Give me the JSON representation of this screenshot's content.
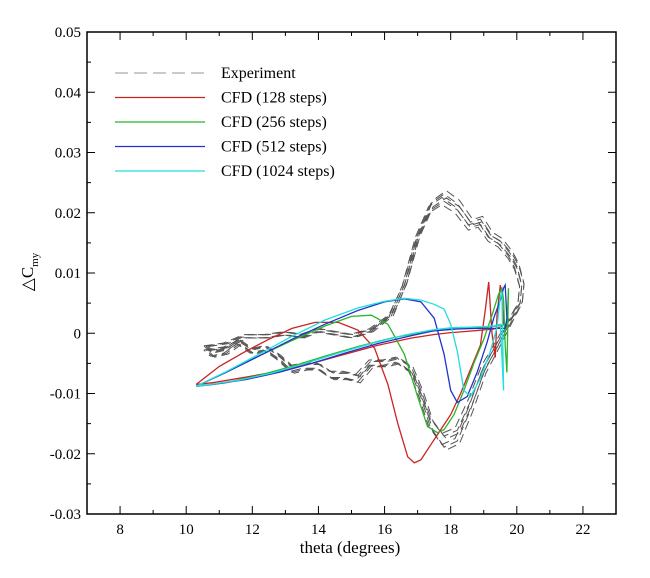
{
  "chart_data": {
    "type": "line",
    "title": "",
    "xlabel": "theta (degrees)",
    "ylabel": "△C",
    "ylabel_subscript": "my",
    "xlim": [
      7,
      23
    ],
    "ylim": [
      -0.03,
      0.05
    ],
    "x_ticks": [
      8,
      10,
      12,
      14,
      16,
      18,
      20,
      22
    ],
    "x_tick_labels": [
      "8",
      "10",
      "12",
      "14",
      "16",
      "18",
      "20",
      "22"
    ],
    "y_ticks": [
      -0.03,
      -0.02,
      -0.01,
      0,
      0.01,
      0.02,
      0.03,
      0.04,
      0.05
    ],
    "y_tick_labels": [
      "-0.03",
      "-0.02",
      "-0.01",
      "0",
      "0.01",
      "0.02",
      "0.03",
      "0.04",
      "0.05"
    ],
    "grid": false,
    "legend_position": "top-left",
    "series": [
      {
        "name": "Experiment",
        "color": "#555555",
        "style": "dashed",
        "cycles": 6,
        "x": [
          10.6,
          11.2,
          11.8,
          12.4,
          13.0,
          13.5,
          14.0,
          14.5,
          15.0,
          15.6,
          16.2,
          16.6,
          17.0,
          17.4,
          17.8,
          18.2,
          18.6,
          18.9,
          19.2,
          19.5,
          19.8,
          20.0,
          20.15,
          20.1,
          19.8,
          19.4,
          19.0,
          18.6,
          18.2,
          17.8,
          17.4,
          17.1,
          16.8,
          16.4,
          16.0,
          15.6,
          15.2,
          14.8,
          14.4,
          14.0,
          13.6,
          13.2,
          12.8,
          12.4,
          12.0,
          11.6,
          11.2,
          10.8,
          10.6
        ],
        "y": [
          -0.0025,
          -0.002,
          -0.0005,
          -0.0005,
          0.0,
          -0.0005,
          0.0005,
          0.0,
          -0.0005,
          0.0005,
          0.003,
          0.008,
          0.016,
          0.021,
          0.0225,
          0.021,
          0.018,
          0.0185,
          0.016,
          0.015,
          0.013,
          0.011,
          0.008,
          0.005,
          0.002,
          -0.002,
          -0.006,
          -0.012,
          -0.017,
          -0.018,
          -0.015,
          -0.01,
          -0.006,
          -0.0045,
          -0.005,
          -0.005,
          -0.0075,
          -0.007,
          -0.007,
          -0.0055,
          -0.0055,
          -0.006,
          -0.004,
          -0.0025,
          -0.003,
          -0.0015,
          -0.003,
          -0.0035,
          -0.0025
        ]
      },
      {
        "name": "CFD (128 steps)",
        "color": "#cc2222",
        "style": "solid",
        "x": [
          10.3,
          11.0,
          11.8,
          12.5,
          13.2,
          13.9,
          14.6,
          15.2,
          15.7,
          16.1,
          16.4,
          16.7,
          16.9,
          17.1,
          17.4,
          17.7,
          18.0,
          18.3,
          18.6,
          18.9,
          19.05,
          19.15,
          19.25,
          19.35,
          19.4,
          19.5,
          19.55,
          19.6,
          19.5,
          19.3,
          19.1,
          18.9,
          18.5,
          18.0,
          17.5,
          16.8,
          15.8,
          14.8,
          13.8,
          12.8,
          11.8,
          10.8,
          10.3
        ],
        "y": [
          -0.0085,
          -0.0055,
          -0.003,
          -0.001,
          0.0008,
          0.0018,
          0.0018,
          0.0005,
          -0.0025,
          -0.0085,
          -0.015,
          -0.0205,
          -0.0215,
          -0.021,
          -0.0185,
          -0.016,
          -0.0135,
          -0.01,
          -0.006,
          -0.002,
          0.004,
          0.0085,
          0.0,
          -0.004,
          0.003,
          0.008,
          0.006,
          0.0015,
          0.001,
          0.0007,
          0.0006,
          0.0005,
          0.0003,
          0.0001,
          -0.0002,
          -0.0008,
          -0.002,
          -0.0035,
          -0.005,
          -0.0063,
          -0.0073,
          -0.0082,
          -0.0085
        ]
      },
      {
        "name": "CFD (256 steps)",
        "color": "#2ab52a",
        "style": "solid",
        "x": [
          10.3,
          11.2,
          12.2,
          13.2,
          14.2,
          15.0,
          15.6,
          16.1,
          16.6,
          17.0,
          17.3,
          17.6,
          17.8,
          18.1,
          18.4,
          18.7,
          19.0,
          19.25,
          19.45,
          19.55,
          19.6,
          19.65,
          19.7,
          19.75,
          19.7,
          19.4,
          19.0,
          18.6,
          18.0,
          17.2,
          16.2,
          15.2,
          14.2,
          13.2,
          12.2,
          11.2,
          10.3
        ],
        "y": [
          -0.0088,
          -0.0065,
          -0.0038,
          -0.0012,
          0.0012,
          0.0028,
          0.003,
          0.0015,
          -0.0035,
          -0.0105,
          -0.0155,
          -0.0165,
          -0.016,
          -0.0135,
          -0.0095,
          -0.005,
          -0.001,
          0.003,
          0.0065,
          0.0075,
          0.0055,
          -0.002,
          -0.0065,
          0.0075,
          0.0015,
          0.0012,
          0.001,
          0.0009,
          0.0007,
          0.0002,
          -0.0008,
          -0.0022,
          -0.0038,
          -0.0055,
          -0.007,
          -0.0082,
          -0.0088
        ]
      },
      {
        "name": "CFD (512 steps)",
        "color": "#2233cc",
        "style": "solid",
        "x": [
          10.3,
          11.2,
          12.2,
          13.2,
          14.2,
          15.2,
          16.0,
          16.6,
          17.1,
          17.5,
          17.8,
          18.0,
          18.2,
          18.5,
          18.8,
          19.1,
          19.3,
          19.5,
          19.6,
          19.65,
          19.7,
          19.65,
          19.45,
          19.2,
          18.8,
          18.2,
          17.5,
          16.8,
          15.8,
          14.8,
          13.8,
          12.8,
          11.8,
          10.8,
          10.3
        ],
        "y": [
          -0.0088,
          -0.0065,
          -0.0038,
          -0.001,
          0.0015,
          0.0038,
          0.0052,
          0.0057,
          0.0052,
          0.0025,
          -0.0035,
          -0.0095,
          -0.0115,
          -0.0105,
          -0.0065,
          -0.0015,
          0.0025,
          0.0055,
          0.0075,
          0.008,
          0.0025,
          0.0008,
          0.0008,
          0.0008,
          0.0008,
          0.0007,
          0.0004,
          -0.0004,
          -0.0017,
          -0.0033,
          -0.005,
          -0.0065,
          -0.0077,
          -0.0085,
          -0.0088
        ]
      },
      {
        "name": "CFD (1024 steps)",
        "color": "#22dddd",
        "style": "solid",
        "x": [
          10.3,
          11.2,
          12.2,
          13.2,
          14.2,
          15.2,
          16.0,
          16.6,
          17.1,
          17.5,
          17.8,
          18.0,
          18.2,
          18.4,
          18.6,
          18.9,
          19.2,
          19.4,
          19.5,
          19.55,
          19.6,
          19.5,
          19.3,
          19.0,
          18.6,
          18.0,
          17.4,
          16.6,
          15.6,
          14.6,
          13.6,
          12.6,
          11.6,
          10.6,
          10.3
        ],
        "y": [
          -0.0088,
          -0.0064,
          -0.0035,
          -0.0005,
          0.0022,
          0.0042,
          0.0053,
          0.0058,
          0.0055,
          0.0048,
          0.004,
          0.0015,
          -0.003,
          -0.0095,
          -0.0105,
          -0.0075,
          -0.003,
          0.001,
          0.006,
          0.007,
          -0.0095,
          0.0015,
          0.0012,
          0.0011,
          0.001,
          0.0009,
          0.0005,
          -0.0003,
          -0.0017,
          -0.0033,
          -0.005,
          -0.0066,
          -0.0078,
          -0.0086,
          -0.0088
        ]
      }
    ]
  }
}
